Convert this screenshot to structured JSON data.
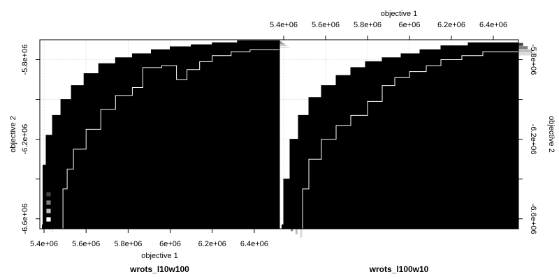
{
  "chart_data": {
    "type": "area",
    "description_text": "",
    "x_axis": {
      "label": "objective 1",
      "range": [
        5380000,
        6520000
      ],
      "ticks": [
        5400000,
        5600000,
        5800000,
        6000000,
        6200000,
        6400000
      ],
      "tick_labels": [
        "5.4e+06",
        "5.6e+06",
        "5.8e+06",
        "6e+06",
        "6.2e+06",
        "6.4e+06"
      ]
    },
    "y_axis": {
      "label": "objective 2",
      "range": [
        -6650000,
        -5700000
      ],
      "ticks": [
        -6600000,
        -6400000,
        -6200000,
        -6000000,
        -5800000
      ],
      "tick_labels": [
        "-6.6e+06",
        "-6.2e+06",
        "-5.8e+06"
      ],
      "labeled_ticks": [
        -6600000,
        -6200000,
        -5800000
      ]
    },
    "legend": {
      "placement": "bottom-left",
      "shades": [
        "#000000",
        "#404040",
        "#7f7f7f",
        "#bfbfbf",
        "#ffffff"
      ]
    },
    "panels": [
      {
        "title": "wrots_l10w100",
        "best_line": [
          [
            5390000,
            -6630000
          ],
          [
            5395000,
            -6330000
          ],
          [
            5410000,
            -6180000
          ],
          [
            5440000,
            -6080000
          ],
          [
            5480000,
            -6000000
          ],
          [
            5530000,
            -5930000
          ],
          [
            5590000,
            -5870000
          ],
          [
            5660000,
            -5820000
          ],
          [
            5740000,
            -5790000
          ],
          [
            5820000,
            -5770000
          ],
          [
            5910000,
            -5750000
          ],
          [
            6000000,
            -5735000
          ],
          [
            6100000,
            -5725000
          ],
          [
            6200000,
            -5715000
          ],
          [
            6320000,
            -5705000
          ],
          [
            6520000,
            -5700000
          ]
        ],
        "worst_line": [
          [
            5480000,
            -6650000
          ],
          [
            5490000,
            -6450000
          ],
          [
            5510000,
            -6350000
          ],
          [
            5540000,
            -6250000
          ],
          [
            5600000,
            -6150000
          ],
          [
            5670000,
            -6050000
          ],
          [
            5740000,
            -5980000
          ],
          [
            5820000,
            -5940000
          ],
          [
            5870000,
            -5840000
          ],
          [
            5960000,
            -5830000
          ],
          [
            6030000,
            -5900000
          ],
          [
            6080000,
            -5850000
          ],
          [
            6140000,
            -5810000
          ],
          [
            6200000,
            -5780000
          ],
          [
            6290000,
            -5760000
          ],
          [
            6380000,
            -5750000
          ],
          [
            6520000,
            -5745000
          ]
        ],
        "band_offsets": [
          [
            0,
            0
          ],
          [
            12000,
            -9000
          ],
          [
            24000,
            -18000
          ],
          [
            36000,
            -27000
          ],
          [
            48000,
            -36000
          ]
        ]
      },
      {
        "title": "wrots_l100w10",
        "best_line": [
          [
            5390000,
            -6630000
          ],
          [
            5400000,
            -6400000
          ],
          [
            5430000,
            -6200000
          ],
          [
            5470000,
            -6080000
          ],
          [
            5520000,
            -5990000
          ],
          [
            5580000,
            -5930000
          ],
          [
            5650000,
            -5880000
          ],
          [
            5720000,
            -5840000
          ],
          [
            5790000,
            -5810000
          ],
          [
            5870000,
            -5790000
          ],
          [
            5960000,
            -5770000
          ],
          [
            6050000,
            -5750000
          ],
          [
            6150000,
            -5730000
          ],
          [
            6280000,
            -5715000
          ],
          [
            6520000,
            -5700000
          ]
        ],
        "worst_line": [
          [
            5480000,
            -6650000
          ],
          [
            5490000,
            -6450000
          ],
          [
            5520000,
            -6300000
          ],
          [
            5580000,
            -6200000
          ],
          [
            5650000,
            -6130000
          ],
          [
            5720000,
            -6080000
          ],
          [
            5800000,
            -6010000
          ],
          [
            5870000,
            -5930000
          ],
          [
            5930000,
            -5890000
          ],
          [
            6000000,
            -5860000
          ],
          [
            6080000,
            -5830000
          ],
          [
            6150000,
            -5800000
          ],
          [
            6250000,
            -5780000
          ],
          [
            6350000,
            -5760000
          ],
          [
            6520000,
            -5755000
          ]
        ],
        "band_offsets": [
          [
            0,
            0
          ],
          [
            22000,
            -16000
          ],
          [
            44000,
            -32000
          ],
          [
            66000,
            -48000
          ],
          [
            88000,
            -64000
          ]
        ]
      }
    ]
  }
}
